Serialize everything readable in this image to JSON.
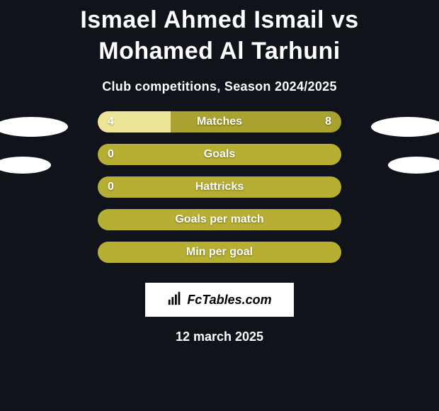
{
  "title": "Ismael Ahmed Ismail vs Mohamed Al Tarhuni",
  "subtitle": "Club competitions, Season 2024/2025",
  "date": "12 march 2025",
  "logo_text": "FcTables.com",
  "colors": {
    "bar_left": "#a9a22f",
    "bar_right": "#c6be3b",
    "bar_full": "#b7af34",
    "highlight": "#ece597",
    "bg": "#10131a",
    "text": "#ffffff",
    "oval": "#ffffff"
  },
  "bars": [
    {
      "label": "Matches",
      "left_val": "4",
      "right_val": "8",
      "left_pct": 30,
      "right_pct": 70,
      "show_left": true,
      "show_right": true,
      "left_color": "#ece597",
      "right_color": "#a9a22f"
    },
    {
      "label": "Goals",
      "left_val": "0",
      "right_val": "",
      "left_pct": 100,
      "right_pct": 0,
      "show_left": true,
      "show_right": false,
      "left_color": "#b7af34",
      "right_color": "#b7af34"
    },
    {
      "label": "Hattricks",
      "left_val": "0",
      "right_val": "",
      "left_pct": 100,
      "right_pct": 0,
      "show_left": true,
      "show_right": false,
      "left_color": "#b7af34",
      "right_color": "#b7af34"
    },
    {
      "label": "Goals per match",
      "left_val": "",
      "right_val": "",
      "left_pct": 100,
      "right_pct": 0,
      "show_left": false,
      "show_right": false,
      "left_color": "#b7af34",
      "right_color": "#b7af34"
    },
    {
      "label": "Min per goal",
      "left_val": "",
      "right_val": "",
      "left_pct": 100,
      "right_pct": 0,
      "show_left": false,
      "show_right": false,
      "left_color": "#b7af34",
      "right_color": "#b7af34"
    }
  ]
}
